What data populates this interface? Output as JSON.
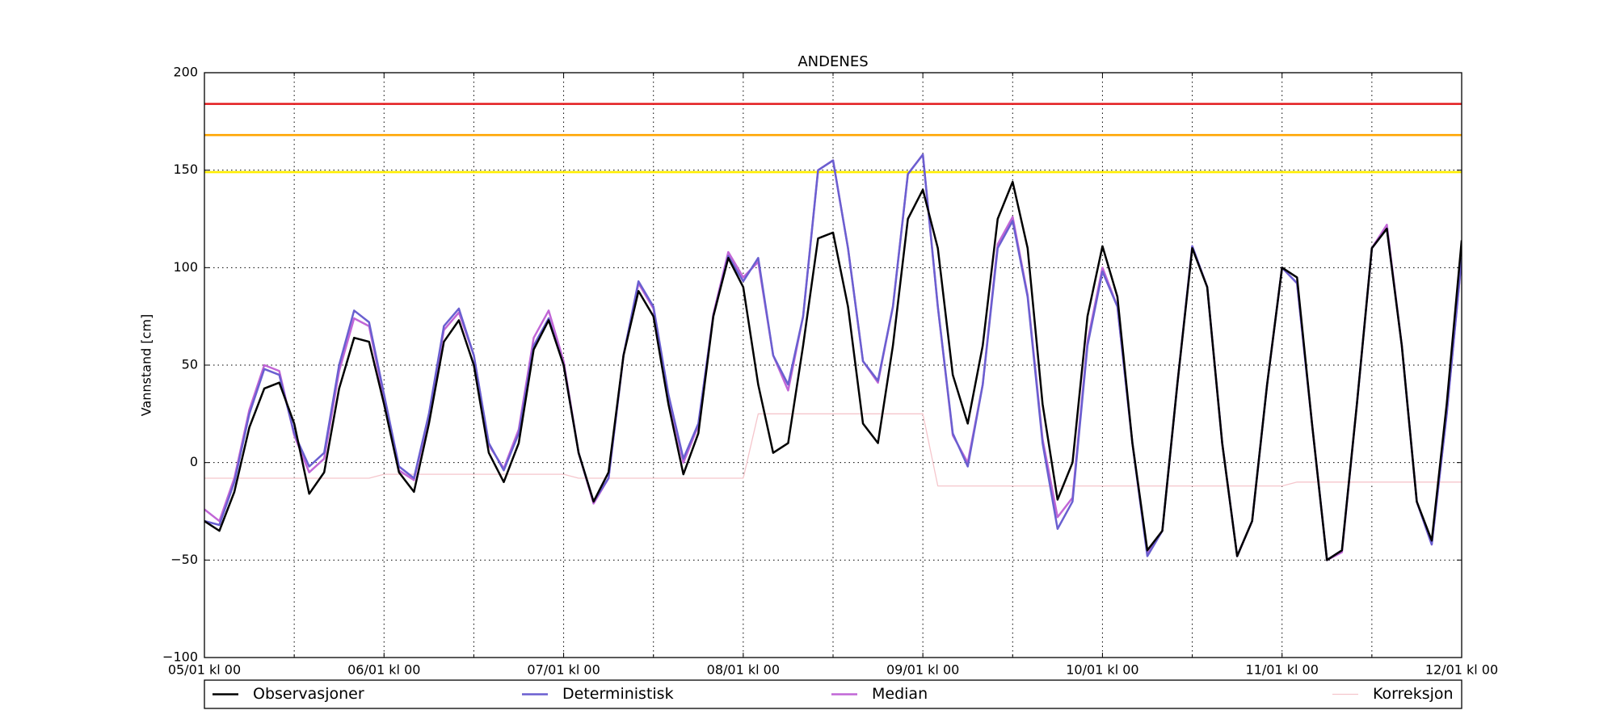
{
  "chart_data": {
    "type": "line",
    "title": "ANDENES",
    "y_label": "Vannstand [cm]",
    "x": [
      0,
      2,
      4,
      6,
      8,
      10,
      12,
      14,
      16,
      18,
      20,
      22,
      24,
      26,
      28,
      30,
      32,
      34,
      36,
      38,
      40,
      42,
      44,
      46,
      48,
      50,
      52,
      54,
      56,
      58,
      60,
      62,
      64,
      66,
      68,
      70,
      72,
      74,
      76,
      78,
      80,
      82,
      84,
      86,
      88,
      90,
      92,
      94,
      96,
      98,
      100,
      102,
      104,
      106,
      108,
      110,
      112,
      114,
      116,
      118,
      120,
      122,
      124,
      126,
      128,
      130,
      132,
      134,
      136,
      138,
      140,
      142,
      144,
      146,
      148,
      150,
      152,
      154,
      156,
      158,
      160,
      162,
      164,
      166,
      168
    ],
    "series": [
      {
        "name": "Observasjoner",
        "color": "#000000",
        "width": 2.5,
        "values": [
          -30,
          -35,
          -15,
          18,
          38,
          41,
          20,
          -16,
          -5,
          38,
          64,
          62,
          30,
          -5,
          -15,
          20,
          62,
          73,
          50,
          5,
          -10,
          10,
          58,
          73,
          50,
          5,
          -20,
          -5,
          55,
          88,
          75,
          30,
          -6,
          15,
          75,
          105,
          90,
          40,
          5,
          10,
          60,
          115,
          118,
          80,
          20,
          10,
          60,
          125,
          140,
          110,
          45,
          20,
          60,
          125,
          144,
          110,
          30,
          -19,
          0,
          75,
          111,
          85,
          10,
          -45,
          -35,
          40,
          110,
          90,
          10,
          -48,
          -30,
          40,
          100,
          95,
          20,
          -50,
          -45,
          30,
          110,
          120,
          60,
          -20,
          -40,
          30,
          114
        ]
      },
      {
        "name": "Deterministisk",
        "color": "#6a5fd0",
        "width": 2.5,
        "values": [
          -30,
          -32,
          -10,
          25,
          48,
          45,
          15,
          -2,
          5,
          50,
          78,
          72,
          35,
          -2,
          -8,
          25,
          70,
          79,
          55,
          10,
          -4,
          15,
          60,
          74,
          50,
          5,
          -20,
          -8,
          55,
          93,
          80,
          35,
          2,
          20,
          75,
          106,
          93,
          105,
          55,
          40,
          75,
          150,
          155,
          110,
          52,
          42,
          80,
          148,
          158,
          80,
          15,
          -2,
          40,
          110,
          124,
          85,
          10,
          -34,
          -20,
          60,
          98,
          80,
          10,
          -48,
          -35,
          40,
          111,
          90,
          10,
          -48,
          -30,
          40,
          100,
          92,
          20,
          -50,
          -45,
          30,
          110,
          120,
          60,
          -20,
          -42,
          25,
          105
        ]
      },
      {
        "name": "Median",
        "color": "#c166d6",
        "width": 2.5,
        "values": [
          -24,
          -30,
          -8,
          27,
          50,
          47,
          14,
          -5,
          2,
          47,
          74,
          70,
          33,
          -4,
          -9,
          24,
          68,
          77,
          55,
          9,
          -3,
          17,
          64,
          78,
          52,
          5,
          -21,
          -8,
          55,
          92,
          79,
          34,
          0,
          19,
          76,
          108,
          95,
          103,
          55,
          37,
          75,
          150,
          155,
          110,
          52,
          41,
          80,
          148,
          158,
          80,
          14,
          0,
          40,
          112,
          126,
          86,
          12,
          -28,
          -18,
          62,
          100,
          80,
          10,
          -47,
          -35,
          40,
          111,
          90,
          10,
          -48,
          -30,
          40,
          100,
          92,
          20,
          -50,
          -46,
          30,
          110,
          122,
          60,
          -20,
          -42,
          25,
          105
        ]
      },
      {
        "name": "Korreksjon",
        "color": "#f5c6cc",
        "width": 1.3,
        "values": [
          -8,
          -8,
          -8,
          -8,
          -8,
          -8,
          -8,
          -8,
          -8,
          -8,
          -8,
          -8,
          -6,
          -6,
          -6,
          -6,
          -6,
          -6,
          -6,
          -6,
          -6,
          -6,
          -6,
          -6,
          -6,
          -8,
          -8,
          -8,
          -8,
          -8,
          -8,
          -8,
          -8,
          -8,
          -8,
          -8,
          -8,
          25,
          25,
          25,
          25,
          25,
          25,
          25,
          25,
          25,
          25,
          25,
          25,
          -12,
          -12,
          -12,
          -12,
          -12,
          -12,
          -12,
          -12,
          -12,
          -12,
          -12,
          -12,
          -12,
          -12,
          -12,
          -12,
          -12,
          -12,
          -12,
          -12,
          -12,
          -12,
          -12,
          -12,
          -10,
          -10,
          -10,
          -10,
          -10,
          -10,
          -10,
          -10,
          -10,
          -10,
          -10,
          -10
        ]
      }
    ],
    "thresholds": [
      {
        "value": 184,
        "color": "#e31a1c"
      },
      {
        "value": 168,
        "color": "#ffa500"
      },
      {
        "value": 149,
        "color": "#ffee00"
      }
    ],
    "xlim": [
      0,
      168
    ],
    "xticks": [
      {
        "value": 0,
        "label": "05/01 kl 00"
      },
      {
        "value": 24,
        "label": "06/01 kl 00"
      },
      {
        "value": 48,
        "label": "07/01 kl 00"
      },
      {
        "value": 72,
        "label": "08/01 kl 00"
      },
      {
        "value": 96,
        "label": "09/01 kl 00"
      },
      {
        "value": 120,
        "label": "10/01 kl 00"
      },
      {
        "value": 144,
        "label": "11/01 kl 00"
      },
      {
        "value": 168,
        "label": "12/01 kl 00"
      }
    ],
    "xminorticks": [
      12,
      36,
      60,
      84,
      108,
      132,
      156
    ],
    "ylim": [
      -100,
      200
    ],
    "yticks": [
      {
        "value": -100,
        "label": "−100"
      },
      {
        "value": -50,
        "label": "−50"
      },
      0,
      50,
      100,
      150,
      200
    ],
    "grid": true,
    "legend": "bottom"
  }
}
